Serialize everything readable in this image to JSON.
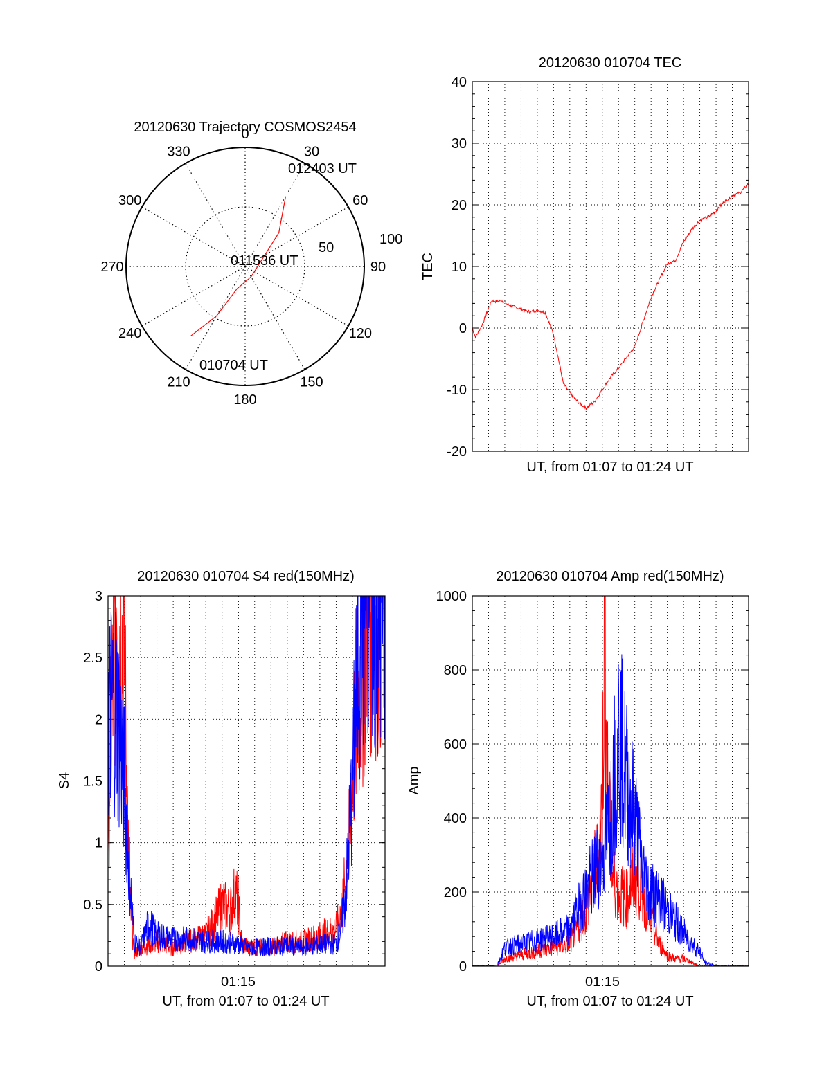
{
  "colors": {
    "red": "#ff0000",
    "blue": "#0000ff",
    "axes": "#000000",
    "background": "#ffffff"
  },
  "chart_data": [
    {
      "id": "polar",
      "type": "polar",
      "title": "20120630 Trajectory COSMOS2454",
      "azimuth_labels": [
        "0",
        "30",
        "60",
        "90",
        "120",
        "150",
        "180",
        "210",
        "240",
        "270",
        "300",
        "330"
      ],
      "radial_labels": [
        "50",
        "100"
      ],
      "grid": true,
      "trajectory": {
        "color": "#ff0000",
        "points": [
          [
            218,
            74
          ],
          [
            210,
            48
          ],
          [
            200,
            20
          ],
          [
            150,
            10
          ],
          [
            45,
            40
          ],
          [
            30,
            68
          ]
        ],
        "start_label": "010704 UT",
        "mid_label": "011536 UT",
        "end_label": "012403 UT"
      }
    },
    {
      "id": "tec",
      "type": "line",
      "title": "20120630 010704 TEC",
      "xlabel": "UT, from 01:07 to 01:24 UT",
      "ylabel": "TEC",
      "xlim": [
        0,
        17
      ],
      "ylim": [
        -20,
        40
      ],
      "yticks": [
        "-20",
        "-10",
        "0",
        "10",
        "20",
        "30",
        "40"
      ],
      "grid": true,
      "series": [
        {
          "color": "#ff0000",
          "x": [
            0,
            0.2,
            0.4,
            0.6,
            0.9,
            1.2,
            1.5,
            1.8,
            2.2,
            2.6,
            3.0,
            3.3,
            3.6,
            4.0,
            4.5,
            5.0,
            5.3,
            5.6,
            6.0,
            6.5,
            7.0,
            7.5,
            8.0,
            8.5,
            9.0,
            10.0,
            11.0,
            12.0,
            12.5,
            13.0,
            13.5,
            14.0,
            14.5,
            15.0,
            15.5,
            16.0,
            16.5,
            17.0
          ],
          "y": [
            0,
            -1.5,
            -0.5,
            0.5,
            2.5,
            4.5,
            4.3,
            4.5,
            3.8,
            3.4,
            3.1,
            2.8,
            2.6,
            2.9,
            2.5,
            -1,
            -5,
            -9,
            -10.5,
            -12,
            -13,
            -12,
            -10,
            -8,
            -6.5,
            -3,
            5,
            10.5,
            11,
            14,
            16,
            17.5,
            18,
            19,
            20.5,
            21.5,
            22,
            23.5
          ]
        }
      ]
    },
    {
      "id": "s4",
      "type": "line",
      "title": "20120630 010704 S4 red(150MHz)",
      "xlabel": "UT, from 01:07 to 01:24 UT",
      "ylabel": "S4",
      "xlim": [
        0,
        17
      ],
      "ylim": [
        0,
        3
      ],
      "yticks": [
        "0",
        "0.5",
        "1",
        "1.5",
        "2",
        "2.5",
        "3"
      ],
      "xtick_label": "01:15",
      "xtick_value": 8,
      "grid": true,
      "series": [
        {
          "color": "#ff0000",
          "x": [
            0,
            0.5,
            1.0,
            1.3,
            1.6,
            2.0,
            3,
            4,
            5,
            6,
            6.5,
            7,
            7.5,
            7.8,
            8.0,
            8.2,
            8.6,
            9,
            10,
            11,
            12,
            13,
            14,
            14.4,
            14.8,
            15.2,
            16,
            17
          ],
          "y": [
            1.2,
            3,
            2.5,
            0.6,
            0.1,
            0.15,
            0.2,
            0.15,
            0.2,
            0.25,
            0.35,
            0.5,
            0.45,
            0.6,
            0.5,
            0.18,
            0.15,
            0.15,
            0.15,
            0.2,
            0.2,
            0.25,
            0.3,
            0.5,
            1.0,
            2.0,
            3,
            3
          ]
        },
        {
          "color": "#0000ff",
          "x": [
            0,
            0.4,
            0.8,
            1.0,
            1.3,
            1.6,
            2.0,
            2.5,
            3,
            4,
            5,
            6,
            7,
            8,
            8.5,
            9,
            10,
            11,
            12,
            13,
            14,
            14.3,
            14.6,
            15.0,
            15.5,
            16,
            17
          ],
          "y": [
            2.0,
            2.2,
            1.8,
            1.5,
            0.8,
            0.2,
            0.15,
            0.35,
            0.25,
            0.22,
            0.22,
            0.2,
            0.2,
            0.18,
            0.15,
            0.15,
            0.16,
            0.17,
            0.15,
            0.18,
            0.18,
            0.3,
            0.6,
            1.5,
            2.8,
            3,
            3
          ]
        }
      ]
    },
    {
      "id": "amp",
      "type": "line",
      "title": "20120630 010704 Amp red(150MHz)",
      "xlabel": "UT, from 01:07 to 01:24 UT",
      "ylabel": "Amp",
      "xlim": [
        0,
        17
      ],
      "ylim": [
        0,
        1000
      ],
      "yticks": [
        "0",
        "200",
        "400",
        "600",
        "800",
        "1000"
      ],
      "xtick_label": "01:15",
      "xtick_value": 8,
      "grid": true,
      "series": [
        {
          "color": "#ff0000",
          "x": [
            0,
            1.5,
            2.0,
            3,
            4,
            5,
            6,
            7,
            7.5,
            7.8,
            8.0,
            8.15,
            8.3,
            8.6,
            9,
            9.5,
            10,
            10.5,
            11,
            11.5,
            12,
            12.5,
            13,
            13.5,
            14,
            14.5,
            17
          ],
          "y": [
            0,
            0,
            20,
            30,
            40,
            50,
            60,
            150,
            250,
            300,
            450,
            980,
            500,
            250,
            200,
            180,
            250,
            200,
            120,
            60,
            30,
            20,
            20,
            10,
            0,
            0,
            0
          ]
        },
        {
          "color": "#0000ff",
          "x": [
            0,
            1.5,
            2.0,
            3,
            4,
            5,
            6,
            7,
            7.5,
            8,
            8.5,
            9,
            9.5,
            10,
            10.5,
            11,
            11.5,
            12,
            12.5,
            13,
            13.5,
            14,
            14.3,
            15,
            17
          ],
          "y": [
            0,
            0,
            50,
            60,
            70,
            80,
            100,
            200,
            250,
            300,
            400,
            640,
            500,
            400,
            250,
            200,
            180,
            150,
            120,
            90,
            60,
            40,
            10,
            0,
            0
          ]
        }
      ]
    }
  ]
}
